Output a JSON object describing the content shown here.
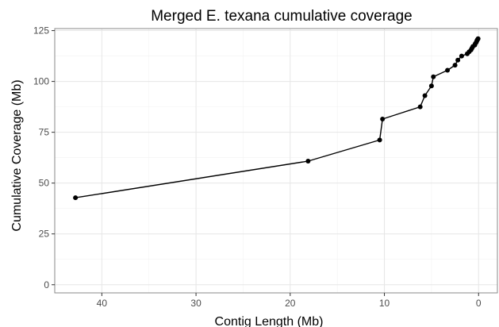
{
  "chart_data": {
    "type": "line",
    "title": "Merged E. texana cumulative coverage",
    "xlabel": "Contig Length (Mb)",
    "ylabel": "Cumulative Coverage (Mb)",
    "x_reversed": true,
    "xlim": [
      45,
      -2
    ],
    "ylim": [
      -4,
      126
    ],
    "x_ticks": [
      {
        "value": 40,
        "label": "40"
      },
      {
        "value": 30,
        "label": "30"
      },
      {
        "value": 20,
        "label": "20"
      },
      {
        "value": 10,
        "label": "10"
      },
      {
        "value": 0,
        "label": "0"
      }
    ],
    "y_ticks": [
      {
        "value": 0,
        "label": "0"
      },
      {
        "value": 25,
        "label": "25"
      },
      {
        "value": 50,
        "label": "50"
      },
      {
        "value": 75,
        "label": "75"
      },
      {
        "value": 100,
        "label": "100"
      },
      {
        "value": 125,
        "label": "125"
      }
    ],
    "grid": true,
    "colors": {
      "series": "#000000",
      "grid": "#e6e6e6",
      "border": "#8a8a8a"
    },
    "series": [
      {
        "points": [
          {
            "x": 42.8,
            "y": 42.8
          },
          {
            "x": 18.1,
            "y": 60.8
          },
          {
            "x": 10.5,
            "y": 71.2
          },
          {
            "x": 10.2,
            "y": 81.5
          },
          {
            "x": 6.2,
            "y": 87.5
          },
          {
            "x": 5.7,
            "y": 93.0
          },
          {
            "x": 5.0,
            "y": 97.8
          },
          {
            "x": 4.8,
            "y": 102.3
          },
          {
            "x": 3.3,
            "y": 105.5
          },
          {
            "x": 2.5,
            "y": 108.0
          },
          {
            "x": 2.2,
            "y": 110.5
          },
          {
            "x": 1.8,
            "y": 112.5
          },
          {
            "x": 1.2,
            "y": 113.6
          },
          {
            "x": 1.0,
            "y": 114.6
          },
          {
            "x": 0.8,
            "y": 115.5
          },
          {
            "x": 0.7,
            "y": 116.4
          },
          {
            "x": 0.6,
            "y": 117.2
          },
          {
            "x": 0.4,
            "y": 117.9
          },
          {
            "x": 0.35,
            "y": 118.6
          },
          {
            "x": 0.25,
            "y": 119.2
          },
          {
            "x": 0.2,
            "y": 119.8
          },
          {
            "x": 0.15,
            "y": 120.3
          },
          {
            "x": 0.1,
            "y": 120.7
          },
          {
            "x": 0.05,
            "y": 121.0
          }
        ]
      }
    ]
  }
}
